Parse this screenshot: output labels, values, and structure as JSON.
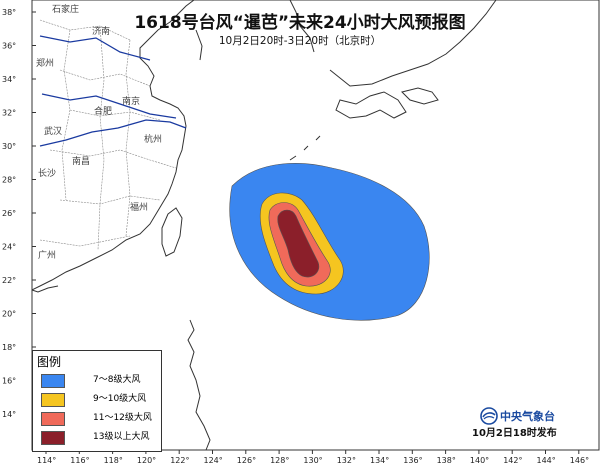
{
  "title": "1618号台风“暹芭”未来24小时大风预报图",
  "subtitle": "10月2日20时-3日20时（北京时）",
  "legend": {
    "title": "图例",
    "items": [
      {
        "label": "7～8级大风",
        "color": "#3a86f0"
      },
      {
        "label": "9～10级大风",
        "color": "#f5c520"
      },
      {
        "label": "11～12级大风",
        "color": "#f06a5a"
      },
      {
        "label": "13级以上大风",
        "color": "#8b1f2a"
      }
    ]
  },
  "agency": "中央气象台",
  "issued": "10月2日18时发布",
  "axes": {
    "lat_ticks": [
      "38°",
      "36°",
      "34°",
      "32°",
      "30°",
      "28°",
      "26°",
      "24°",
      "22°",
      "20°",
      "18°",
      "16°",
      "14°"
    ],
    "lon_ticks": [
      "114°",
      "116°",
      "118°",
      "120°",
      "122°",
      "124°",
      "126°",
      "128°",
      "130°",
      "132°",
      "134°",
      "136°",
      "138°",
      "140°",
      "142°",
      "144°",
      "146°"
    ]
  },
  "cities": [
    "石家庄",
    "济南",
    "郑州",
    "合肥",
    "南京",
    "武汉",
    "杭州",
    "长沙",
    "南昌",
    "福州",
    "广州"
  ],
  "colors": {
    "land_bg": "#ffffff",
    "coast": "#333333",
    "river": "#1a3aa0"
  }
}
